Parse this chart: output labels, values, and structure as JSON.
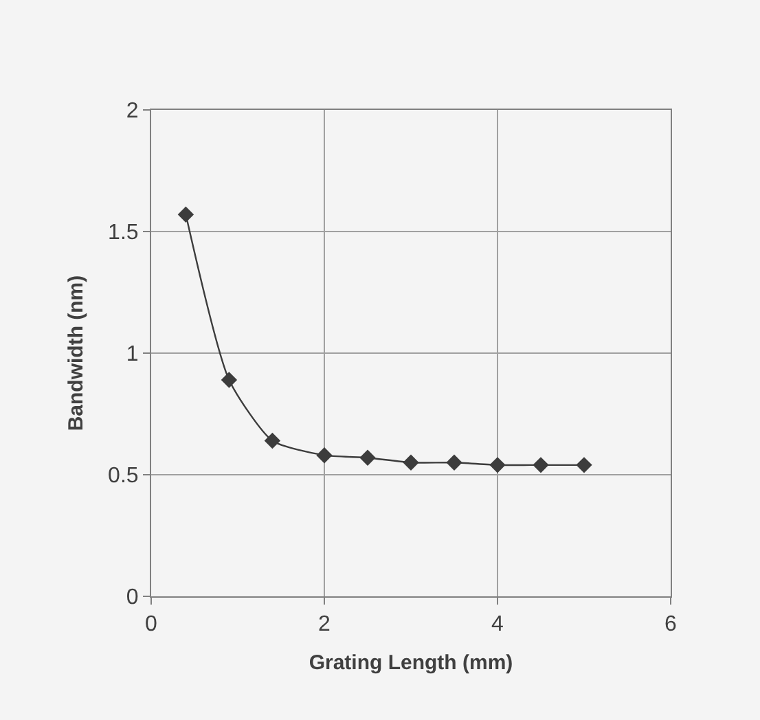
{
  "chart_data": {
    "type": "line",
    "xlabel": "Grating Length (mm)",
    "ylabel": "Bandwidth (nm)",
    "x": [
      0.4,
      0.9,
      1.4,
      2,
      2.5,
      3,
      3.5,
      4,
      4.5,
      5
    ],
    "series": [
      {
        "color": "#3c3c3c",
        "values": [
          1.57,
          0.89,
          0.64,
          0.58,
          0.57,
          0.55,
          0.55,
          0.54,
          0.54,
          0.54
        ]
      }
    ],
    "xlim": [
      0,
      6
    ],
    "xticks": [
      0,
      2,
      4,
      6
    ],
    "ylim": [
      0,
      2
    ],
    "yticks": [
      0,
      0.5,
      1,
      1.5,
      2
    ],
    "grid": true,
    "marker": "diamond",
    "line_style": "solid"
  }
}
